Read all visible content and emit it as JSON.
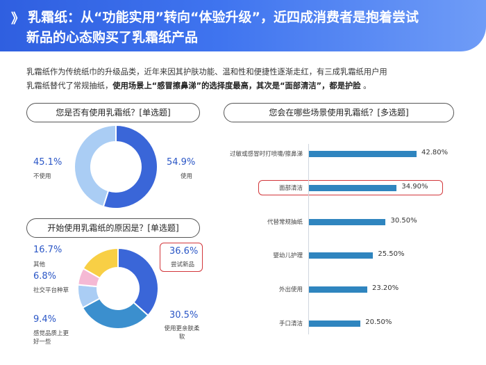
{
  "header": {
    "chevron": "》",
    "title_line1": "乳霜纸：从“功能实用”转向“体验升级”，近四成消费者是抱着尝试",
    "title_line2": "新品的心态购买了乳霜纸产品"
  },
  "intro": {
    "line1": "乳霜纸作为传统纸巾的升级品类，近年来因其护肤功能、温和性和便捷性逐渐走红，有三成乳霜纸用户用",
    "line2_plain": "乳霜纸替代了常规抽纸，",
    "line2_bold": "使用场景上“感冒擦鼻涕”的选择度最高，其次是“面部清洁”，都是护脸",
    "line2_end": " 。"
  },
  "chart_data": [
    {
      "type": "pie",
      "title": "您是否有使用乳霜纸？[单选题]",
      "categories": [
        "使用",
        "不使用"
      ],
      "values": [
        54.9,
        45.1
      ],
      "value_labels": [
        "54.9%",
        "45.1%"
      ],
      "colors": [
        "#3a66d8",
        "#aacdf4"
      ]
    },
    {
      "type": "pie",
      "title": "开始使用乳霜纸的原因是？[单选题]",
      "categories": [
        "尝试新品",
        "使用更亲肤柔软",
        "感觉品质上更好一些",
        "社交平台种草",
        "其他"
      ],
      "values": [
        36.6,
        30.5,
        9.4,
        6.8,
        16.7
      ],
      "value_labels": [
        "36.6%",
        "30.5%",
        "9.4%",
        "6.8%",
        "16.7%"
      ],
      "colors": [
        "#3a66d8",
        "#3b8fce",
        "#aacdf4",
        "#f5b9d4",
        "#f8cf45"
      ],
      "highlight": "尝试新品"
    },
    {
      "type": "bar",
      "orientation": "horizontal",
      "title": "您会在哪些场景使用乳霜纸？[多选题]",
      "categories": [
        "过敏或感冒时打喷嚏/擦鼻涕",
        "面部清洁",
        "代替常规抽纸",
        "婴幼儿护理",
        "外出使用",
        "手口清洁"
      ],
      "values": [
        42.8,
        34.9,
        30.5,
        25.5,
        23.2,
        20.5
      ],
      "value_labels": [
        "42.80%",
        "34.90%",
        "30.50%",
        "25.50%",
        "23.20%",
        "20.50%"
      ],
      "color": "#2f85bf",
      "highlight": "面部清洁"
    }
  ]
}
